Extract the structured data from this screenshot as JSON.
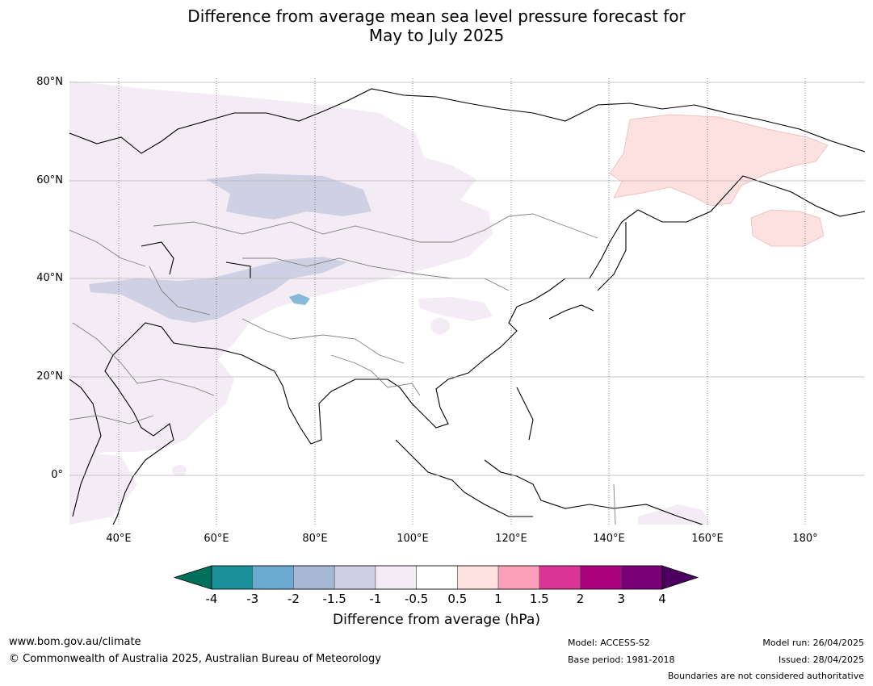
{
  "title_line1": "Difference from average mean sea level pressure forecast for",
  "title_line2": "May to July 2025",
  "lat_labels": [
    "80°N",
    "60°N",
    "40°N",
    "20°N",
    "0°"
  ],
  "lon_labels": [
    "40°E",
    "60°E",
    "80°E",
    "100°E",
    "120°E",
    "140°E",
    "160°E",
    "180°"
  ],
  "colorbar": {
    "title": "Difference from average (hPa)",
    "tick_labels": [
      "-4",
      "-3",
      "-2",
      "-1.5",
      "-1",
      "-0.5",
      "0.5",
      "1",
      "1.5",
      "2",
      "3",
      "4"
    ],
    "colors": [
      "#1a9199",
      "#6aaad0",
      "#a7b8d6",
      "#cfd0e4",
      "#f3ecf4",
      "#ffffff",
      "#fde0e0",
      "#fba0b8",
      "#dc3597",
      "#ac007e",
      "#7a0078"
    ],
    "extend_low_color": "#00705a",
    "extend_high_color": "#4b005f"
  },
  "footer": {
    "website": "www.bom.gov.au/climate",
    "copyright": "© Commonwealth of Australia 2025, Australian Bureau of Meteorology",
    "model": "Model: ACCESS-S2",
    "base_period": "Base period: 1981-2018",
    "model_run": "Model run: 26/04/2025",
    "issued": "Issued: 28/04/2025",
    "disclaimer": "Boundaries are not considered authoritative"
  }
}
